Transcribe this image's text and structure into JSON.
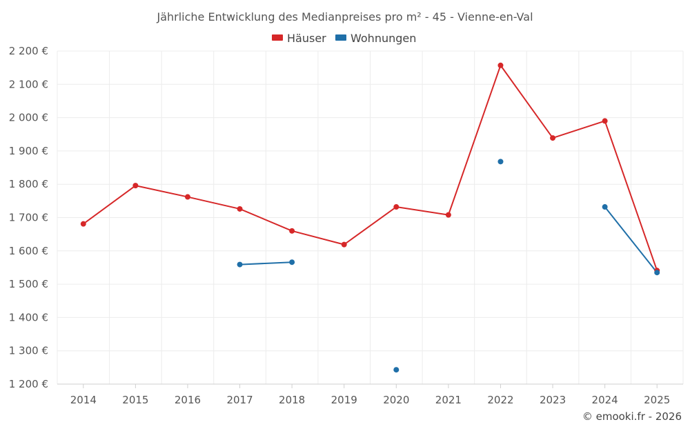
{
  "chart_data": {
    "type": "line",
    "title": "Jährliche Entwicklung des Medianpreises pro m² - 45 - Vienne-en-Val",
    "categories": [
      "2014",
      "2015",
      "2016",
      "2017",
      "2018",
      "2019",
      "2020",
      "2021",
      "2022",
      "2023",
      "2024",
      "2025"
    ],
    "ylim": [
      1200,
      2200
    ],
    "yticks": [
      1200,
      1300,
      1400,
      1500,
      1600,
      1700,
      1800,
      1900,
      2000,
      2100,
      2200
    ],
    "ytick_labels": [
      "1 200 €",
      "1 300 €",
      "1 400 €",
      "1 500 €",
      "1 600 €",
      "1 700 €",
      "1 800 €",
      "1 900 €",
      "2 000 €",
      "2 100 €",
      "2 200 €"
    ],
    "legend_position": "top-center",
    "grid": true,
    "series": [
      {
        "name": "Häuser",
        "color": "#d62728",
        "values": [
          1681,
          1796,
          1762,
          1726,
          1660,
          1619,
          1732,
          1708,
          2157,
          1939,
          1990,
          1541
        ]
      },
      {
        "name": "Wohnungen",
        "color": "#1f6fa8",
        "values": [
          null,
          null,
          null,
          1559,
          1566,
          null,
          1243,
          null,
          1868,
          null,
          1732,
          1535
        ]
      }
    ],
    "credit": "© emooki.fr - 2026"
  }
}
